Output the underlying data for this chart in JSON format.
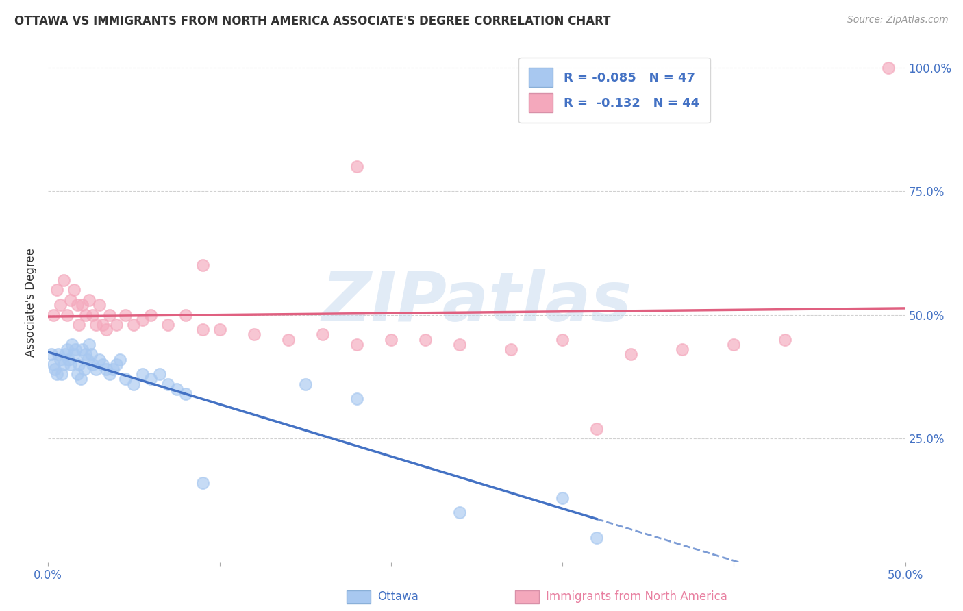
{
  "title": "OTTAWA VS IMMIGRANTS FROM NORTH AMERICA ASSOCIATE'S DEGREE CORRELATION CHART",
  "source": "Source: ZipAtlas.com",
  "ylabel": "Associate's Degree",
  "xlim": [
    0.0,
    0.5
  ],
  "ylim": [
    0.0,
    1.05
  ],
  "ottawa_color": "#a8c8f0",
  "immigrants_color": "#f4a8bc",
  "trend_ottawa_color": "#4472c4",
  "trend_immigrants_color": "#e06080",
  "watermark_text": "ZIPatlas",
  "bg_color": "#ffffff",
  "grid_color": "#cccccc",
  "ottawa_x": [
    0.002,
    0.003,
    0.004,
    0.005,
    0.006,
    0.007,
    0.008,
    0.009,
    0.01,
    0.011,
    0.012,
    0.013,
    0.014,
    0.015,
    0.016,
    0.017,
    0.018,
    0.019,
    0.02,
    0.021,
    0.022,
    0.023,
    0.024,
    0.025,
    0.026,
    0.028,
    0.03,
    0.032,
    0.034,
    0.036,
    0.038,
    0.04,
    0.042,
    0.045,
    0.05,
    0.055,
    0.06,
    0.065,
    0.07,
    0.075,
    0.08,
    0.09,
    0.15,
    0.18,
    0.24,
    0.3,
    0.32
  ],
  "ottawa_y": [
    0.42,
    0.4,
    0.39,
    0.38,
    0.42,
    0.41,
    0.38,
    0.4,
    0.42,
    0.43,
    0.41,
    0.4,
    0.44,
    0.42,
    0.43,
    0.38,
    0.4,
    0.37,
    0.43,
    0.39,
    0.42,
    0.41,
    0.44,
    0.42,
    0.4,
    0.39,
    0.41,
    0.4,
    0.39,
    0.38,
    0.39,
    0.4,
    0.41,
    0.37,
    0.36,
    0.38,
    0.37,
    0.38,
    0.36,
    0.35,
    0.34,
    0.16,
    0.36,
    0.33,
    0.1,
    0.13,
    0.05
  ],
  "immigrants_x": [
    0.003,
    0.005,
    0.007,
    0.009,
    0.011,
    0.013,
    0.015,
    0.017,
    0.018,
    0.02,
    0.022,
    0.024,
    0.026,
    0.028,
    0.03,
    0.032,
    0.034,
    0.036,
    0.04,
    0.045,
    0.05,
    0.055,
    0.06,
    0.07,
    0.08,
    0.09,
    0.1,
    0.12,
    0.14,
    0.16,
    0.18,
    0.2,
    0.22,
    0.24,
    0.27,
    0.3,
    0.34,
    0.37,
    0.4,
    0.43,
    0.18,
    0.09,
    0.32,
    0.49
  ],
  "immigrants_y": [
    0.5,
    0.55,
    0.52,
    0.57,
    0.5,
    0.53,
    0.55,
    0.52,
    0.48,
    0.52,
    0.5,
    0.53,
    0.5,
    0.48,
    0.52,
    0.48,
    0.47,
    0.5,
    0.48,
    0.5,
    0.48,
    0.49,
    0.5,
    0.48,
    0.5,
    0.47,
    0.47,
    0.46,
    0.45,
    0.46,
    0.44,
    0.45,
    0.45,
    0.44,
    0.43,
    0.45,
    0.42,
    0.43,
    0.44,
    0.45,
    0.8,
    0.6,
    0.27,
    1.0
  ]
}
